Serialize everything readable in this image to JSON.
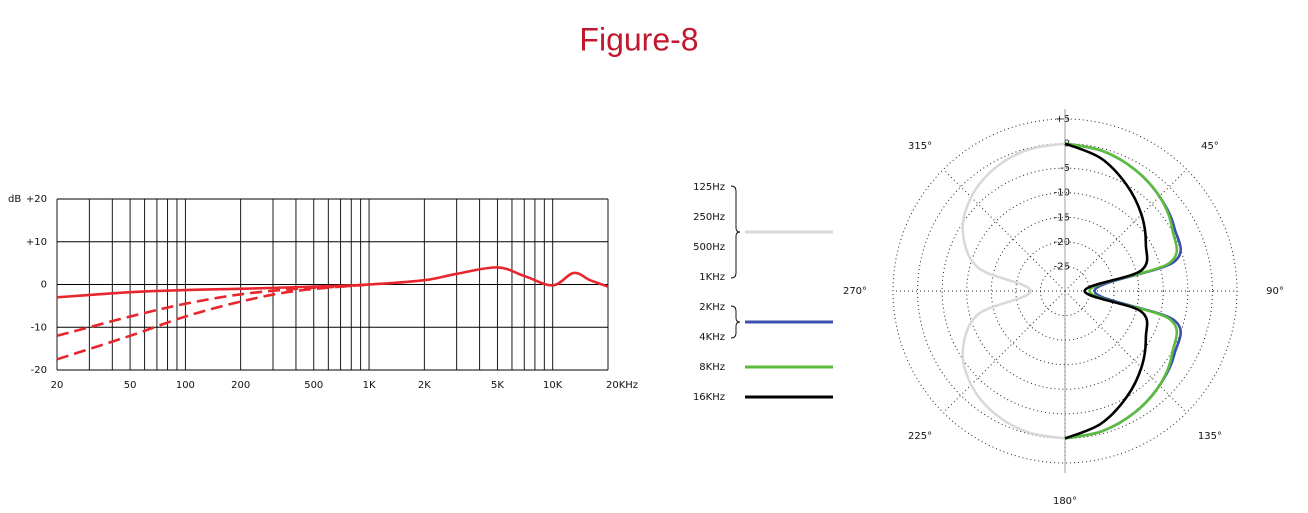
{
  "title": "Figure-8",
  "chart_data": [
    {
      "type": "line",
      "log_x": true,
      "grid": true,
      "y_unit": "dB",
      "xlim": [
        20,
        20000
      ],
      "ylim": [
        -20,
        20
      ],
      "xticks": [
        20,
        50,
        100,
        200,
        500,
        {
          "value": 1000,
          "label": "1K"
        },
        {
          "value": 2000,
          "label": "2K"
        },
        {
          "value": 5000,
          "label": "5K"
        },
        {
          "value": 10000,
          "label": "10K"
        },
        {
          "value": 20000,
          "label": "20KHz"
        }
      ],
      "xgrid": [
        20,
        30,
        40,
        50,
        60,
        70,
        80,
        90,
        100,
        200,
        300,
        400,
        500,
        600,
        700,
        800,
        900,
        1000,
        2000,
        3000,
        4000,
        5000,
        6000,
        7000,
        8000,
        9000,
        10000,
        20000
      ],
      "yticks": [
        {
          "value": 20,
          "label": "+20"
        },
        {
          "value": 10,
          "label": "+10"
        },
        0,
        -10,
        -20
      ],
      "series": [
        {
          "color": "#e8262d",
          "dash": false,
          "x": [
            20,
            50,
            100,
            200,
            500,
            1000,
            2000,
            3000,
            5000,
            7000,
            10000,
            13000,
            16000,
            20000
          ],
          "values": [
            -3,
            -1.8,
            -1.3,
            -1,
            -0.5,
            0,
            1,
            2.5,
            4,
            2,
            -0.2,
            2.7,
            1,
            -0.5
          ]
        },
        {
          "color": "#e8262d",
          "dash": true,
          "x": [
            20,
            50,
            100,
            200,
            400,
            700,
            1000
          ],
          "values": [
            -12,
            -7.5,
            -4.5,
            -2.3,
            -1,
            -0.5,
            0
          ]
        },
        {
          "color": "#e8262d",
          "dash": true,
          "x": [
            20,
            50,
            100,
            200,
            400,
            1000
          ],
          "values": [
            -17.5,
            -12,
            -7.5,
            -4,
            -1.5,
            0
          ]
        }
      ]
    },
    {
      "type": "polar",
      "grid": true,
      "rlim": [
        -30,
        5
      ],
      "rticks": [
        {
          "value": 5,
          "label": "+5"
        },
        0,
        -5,
        -10,
        -15,
        -20,
        -25
      ],
      "angleticks": [
        {
          "value": 45,
          "label": "45°"
        },
        {
          "value": 90,
          "label": "90°"
        },
        {
          "value": 135,
          "label": "135°"
        },
        {
          "value": 180,
          "label": "180°"
        },
        {
          "value": 225,
          "label": "225°"
        },
        {
          "value": 270,
          "label": "270°"
        },
        {
          "value": 315,
          "label": "315°"
        }
      ],
      "series": [
        {
          "labels": [
            "125Hz",
            "250Hz",
            "500Hz",
            "1KHz"
          ],
          "color": "#d9d9d9",
          "angles": [
            180,
            195,
            210,
            225,
            240,
            255,
            270,
            285,
            300,
            315,
            330,
            345,
            360
          ],
          "values": [
            0,
            -0.3,
            -1.25,
            -3,
            -6,
            -11.7,
            -23,
            -11.7,
            -6,
            -3,
            -1.25,
            -0.3,
            0
          ]
        },
        {
          "labels": [
            "2KHz",
            "4KHz"
          ],
          "color": "#3b4fb0",
          "angles": [
            0,
            15,
            30,
            45,
            60,
            75,
            90,
            105,
            120,
            135,
            150,
            165,
            180
          ],
          "values": [
            0,
            -0.5,
            -1.5,
            -2.8,
            -4.3,
            -7,
            -24,
            -7,
            -4.3,
            -2.8,
            -1.5,
            -0.5,
            0
          ]
        },
        {
          "labels": [
            "8KHz"
          ],
          "color": "#5cbd3c",
          "angles": [
            0,
            15,
            30,
            45,
            60,
            75,
            90,
            105,
            120,
            135,
            150,
            165,
            180
          ],
          "values": [
            0,
            -0.5,
            -1.5,
            -2.8,
            -4.8,
            -8,
            -25,
            -8,
            -4.8,
            -2.8,
            -1.5,
            -0.5,
            0
          ]
        },
        {
          "labels": [
            "16KHz"
          ],
          "color": "#000000",
          "angles": [
            0,
            15,
            30,
            45,
            60,
            75,
            90,
            105,
            120,
            135,
            150,
            165,
            180
          ],
          "values": [
            0,
            -2,
            -5,
            -8,
            -11,
            -14,
            -26,
            -14,
            -11,
            -8,
            -5,
            -2,
            0
          ]
        }
      ]
    }
  ]
}
